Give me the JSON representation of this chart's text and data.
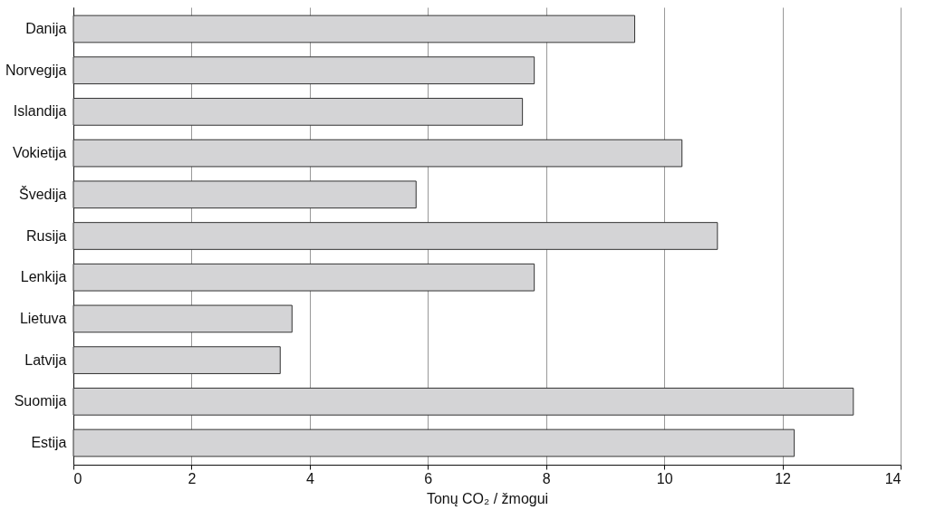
{
  "chart_data": {
    "type": "bar",
    "orientation": "horizontal",
    "xlabel": "Tonų CO₂ / žmogui",
    "categories": [
      "Danija",
      "Norvegija",
      "Islandija",
      "Vokietija",
      "Švedija",
      "Rusija",
      "Lenkija",
      "Lietuva",
      "Latvija",
      "Suomija",
      "Estija"
    ],
    "values": [
      9.5,
      7.8,
      7.6,
      10.3,
      5.8,
      10.9,
      7.8,
      3.7,
      3.5,
      13.2,
      12.2
    ],
    "color": "#d4d4d6",
    "xlim": [
      0,
      14
    ],
    "xticks": [
      0,
      2,
      4,
      6,
      8,
      10,
      12,
      14
    ],
    "grid": "x"
  }
}
